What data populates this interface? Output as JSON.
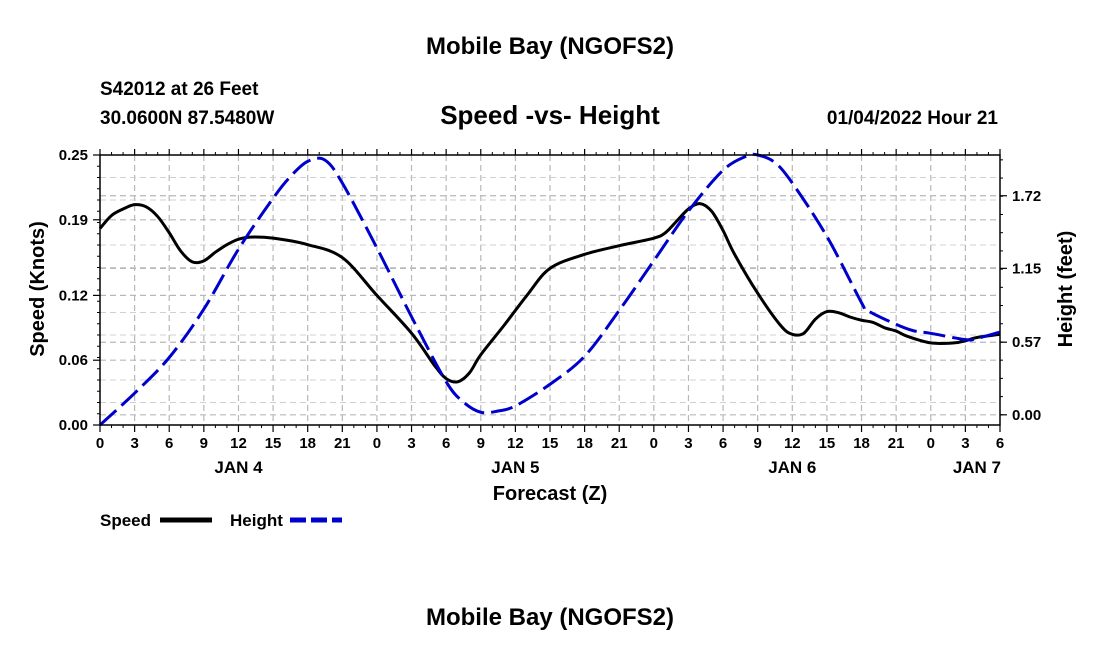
{
  "header": {
    "title": "Mobile Bay (NGOFS2)",
    "station": "S42012 at 26 Feet",
    "coords": "30.0600N  87.5480W",
    "timestamp": "01/04/2022 Hour 21"
  },
  "footer": {
    "title": "Mobile Bay (NGOFS2)"
  },
  "chart_data": {
    "type": "line",
    "title": "Speed -vs- Height",
    "xlabel": "Forecast (Z)",
    "ylabel": "Speed (Knots)",
    "y2label": "Height (feet)",
    "x_unit": "hours since 2022-01-04 00Z",
    "xlim": [
      0,
      78
    ],
    "ylim": [
      0,
      0.25
    ],
    "y2lim": [
      -0.08,
      2.04
    ],
    "x_ticks": [
      0,
      3,
      6,
      9,
      12,
      15,
      18,
      21,
      24,
      27,
      30,
      33,
      36,
      39,
      42,
      45,
      48,
      51,
      54,
      57,
      60,
      63,
      66,
      69,
      72,
      75,
      78
    ],
    "x_tick_labels": [
      "0",
      "3",
      "6",
      "9",
      "12",
      "15",
      "18",
      "21",
      "0",
      "3",
      "6",
      "9",
      "12",
      "15",
      "18",
      "21",
      "0",
      "3",
      "6",
      "9",
      "12",
      "15",
      "18",
      "21",
      "0",
      "3",
      "6"
    ],
    "y_ticks": [
      0,
      0.06,
      0.12,
      0.19,
      0.25
    ],
    "y_tick_labels": [
      "0.00",
      "0.06",
      "0.12",
      "0.19",
      "0.25"
    ],
    "y2_ticks": [
      0,
      0.57,
      1.15,
      1.72
    ],
    "y2_tick_labels": [
      "0.00",
      "0.57",
      "1.15",
      "1.72"
    ],
    "date_labels": [
      {
        "x": 12,
        "text": "JAN 4"
      },
      {
        "x": 36,
        "text": "JAN 5"
      },
      {
        "x": 60,
        "text": "JAN 6"
      },
      {
        "x": 76,
        "text": "JAN 7"
      }
    ],
    "grid": true,
    "legend": {
      "position": "bottom-left",
      "speed_label": "Speed",
      "height_label": "Height"
    },
    "series": [
      {
        "name": "Speed",
        "axis": "left",
        "color": "#000000",
        "style": "solid",
        "x": [
          0,
          1,
          2,
          3,
          4,
          5,
          6,
          7,
          8,
          9,
          10,
          11,
          12,
          13,
          15,
          18,
          21,
          24,
          27,
          29,
          30,
          31,
          32,
          33,
          35,
          37,
          39,
          42,
          45,
          48,
          49,
          50,
          51,
          52,
          53,
          54,
          55,
          57,
          59,
          60,
          61,
          62,
          63,
          64,
          65,
          66,
          67,
          68,
          69,
          70,
          72,
          74,
          75,
          76,
          78
        ],
        "values": [
          0.182,
          0.194,
          0.2,
          0.204,
          0.202,
          0.193,
          0.178,
          0.161,
          0.151,
          0.152,
          0.16,
          0.167,
          0.172,
          0.174,
          0.173,
          0.167,
          0.155,
          0.12,
          0.085,
          0.055,
          0.043,
          0.04,
          0.048,
          0.065,
          0.092,
          0.12,
          0.145,
          0.158,
          0.166,
          0.173,
          0.178,
          0.189,
          0.2,
          0.205,
          0.198,
          0.18,
          0.158,
          0.122,
          0.092,
          0.084,
          0.085,
          0.098,
          0.105,
          0.104,
          0.1,
          0.097,
          0.095,
          0.09,
          0.087,
          0.082,
          0.076,
          0.076,
          0.078,
          0.081,
          0.084
        ]
      },
      {
        "name": "Height",
        "axis": "right",
        "color": "#0000cc",
        "style": "dashed",
        "x": [
          0,
          3,
          6,
          9,
          12,
          15,
          16.5,
          18,
          19.5,
          21,
          24,
          27,
          30,
          31.5,
          33,
          34.5,
          36,
          39,
          42,
          45,
          48,
          51,
          54,
          56,
          57,
          58.5,
          60,
          63,
          66,
          66.5,
          69,
          70.5,
          72,
          75,
          76,
          78
        ],
        "values": [
          -0.08,
          0.17,
          0.45,
          0.83,
          1.3,
          1.7,
          1.87,
          1.99,
          2.0,
          1.82,
          1.31,
          0.77,
          0.26,
          0.1,
          0.02,
          0.03,
          0.07,
          0.24,
          0.46,
          0.82,
          1.21,
          1.6,
          1.92,
          2.03,
          2.04,
          1.98,
          1.82,
          1.4,
          0.88,
          0.82,
          0.71,
          0.66,
          0.64,
          0.59,
          0.6,
          0.65
        ]
      }
    ]
  }
}
